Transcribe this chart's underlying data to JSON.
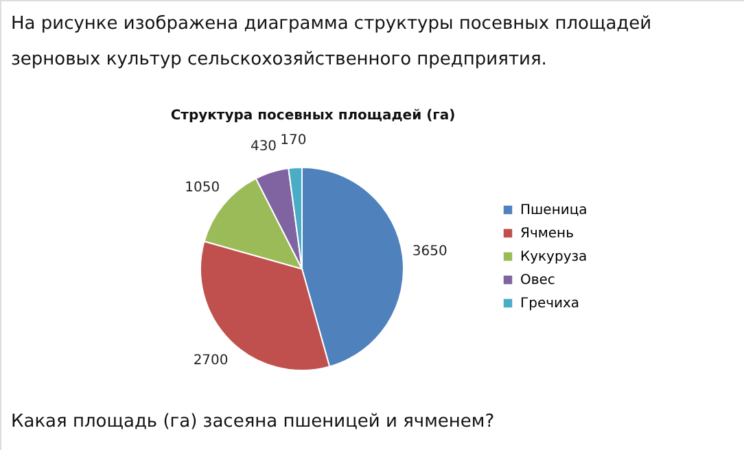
{
  "chart_data": {
    "type": "pie",
    "title": "Структура посевных площадей (га)",
    "categories": [
      "Пшеница",
      "Ячмень",
      "Кукуруза",
      "Овес",
      "Гречиха"
    ],
    "values": [
      3650,
      2700,
      1050,
      430,
      170
    ],
    "colors": [
      "#4f81bd",
      "#c0504d",
      "#9bbb59",
      "#8064a2",
      "#4bacc6"
    ],
    "data_labels": true,
    "legend": "right",
    "annotations": [
      "На рисунке изображена диаграмма структуры посевных площадей зерновых культур сельскохозяйственного предприятия.",
      "Какая площадь (га) засеяна пшеницей и ячменем?"
    ]
  }
}
